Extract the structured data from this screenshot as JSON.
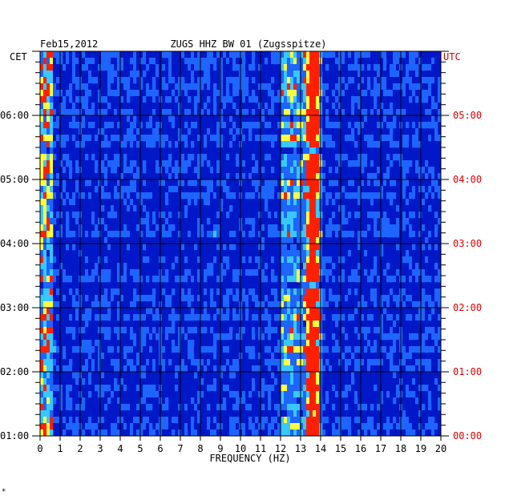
{
  "header": {
    "date": "Feb15,2012",
    "station": "ZUGS HHZ BW 01 (Zugsspitze)"
  },
  "labels": {
    "left_zone": "CET",
    "right_zone": "UTC",
    "footer_mark": "*"
  },
  "chart_data": {
    "type": "heatmap",
    "xlabel": "FREQUENCY (HZ)",
    "xlim": [
      0,
      20
    ],
    "x_ticks": [
      "0",
      "1",
      "2",
      "3",
      "4",
      "5",
      "6",
      "7",
      "8",
      "9",
      "10",
      "11",
      "12",
      "13",
      "14",
      "15",
      "16",
      "17",
      "18",
      "19",
      "20"
    ],
    "y_ticks_left": [
      "01:00",
      "02:00",
      "03:00",
      "04:00",
      "05:00",
      "06:00"
    ],
    "y_ticks_right": [
      "00:00",
      "01:00",
      "02:00",
      "03:00",
      "04:00",
      "05:00"
    ],
    "time_range_cet": [
      "01:00",
      "07:00"
    ],
    "colormap": [
      "#00007a",
      "#0018c8",
      "#1e64ff",
      "#38c8ff",
      "#ffff40",
      "#ff2000"
    ],
    "features": [
      {
        "name": "narrowband line",
        "frequency_hz": 13.6,
        "intensity": "high"
      },
      {
        "name": "broad band",
        "frequency_range_hz": [
          12.0,
          14.0
        ],
        "intensity": "medium"
      },
      {
        "name": "low-frequency energy",
        "frequency_range_hz": [
          0.0,
          0.6
        ],
        "intensity": "high"
      }
    ]
  },
  "colors": {
    "background": "#ffffff",
    "frame": "#000000",
    "utc_text": "#e00000"
  }
}
